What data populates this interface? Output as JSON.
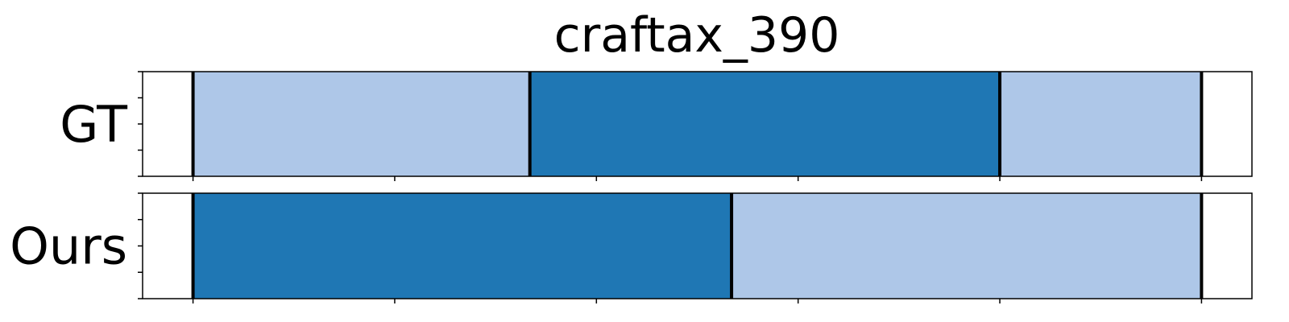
{
  "chart_data": {
    "type": "bar",
    "title": "craftax_390",
    "xlim": [
      -25,
      525
    ],
    "xticks": [
      0,
      100,
      200,
      300,
      400,
      500
    ],
    "tick_labels_shown": false,
    "rows": [
      {
        "label": "GT",
        "segments": [
          {
            "start": 0,
            "end": 167,
            "class": "light"
          },
          {
            "start": 167,
            "end": 400,
            "class": "dark"
          },
          {
            "start": 400,
            "end": 500,
            "class": "light"
          }
        ],
        "boundaries": [
          0,
          167,
          400,
          500
        ]
      },
      {
        "label": "Ours",
        "segments": [
          {
            "start": 0,
            "end": 267,
            "class": "dark"
          },
          {
            "start": 267,
            "end": 500,
            "class": "light"
          }
        ],
        "boundaries": [
          0,
          267,
          500
        ]
      }
    ],
    "colors": {
      "light": "#aec7e8",
      "dark": "#1f77b4",
      "boundary": "#000000"
    },
    "grid": false,
    "legend": "none"
  }
}
